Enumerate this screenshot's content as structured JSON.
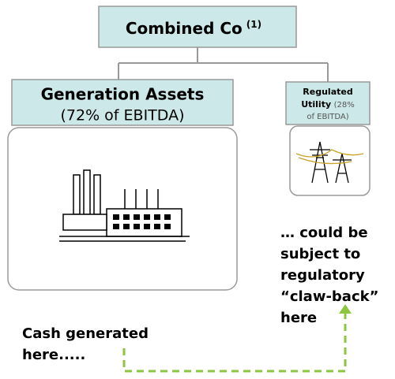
{
  "nodes": [
    {
      "label": "Combined Co",
      "note": "(1)"
    },
    {
      "label": "Generation Assets",
      "sublabel": "(72% of EBITDA)"
    },
    {
      "label": "Regulated",
      "label2": "Utility",
      "sublabel": "(28%",
      "sublabel2": "of EBITDA)"
    }
  ],
  "annotations": [
    {
      "lines": [
        "… could be",
        "subject to",
        "regulatory",
        "“claw-back”",
        "here"
      ]
    },
    {
      "lines": [
        "Cash generated",
        "here....."
      ]
    }
  ]
}
